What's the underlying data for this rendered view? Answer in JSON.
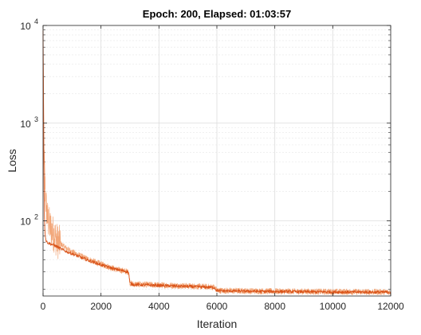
{
  "chart_data": {
    "type": "line",
    "title": "Epoch: 200, Elapsed: 01:03:57",
    "xlabel": "Iteration",
    "ylabel": "Loss",
    "xlim": [
      0,
      12000
    ],
    "ylim": [
      17,
      10000
    ],
    "yscale": "log",
    "grid": true,
    "minor_grid": true,
    "x_ticks": [
      0,
      2000,
      4000,
      6000,
      8000,
      10000,
      12000
    ],
    "x_tick_labels": [
      "0",
      "2000",
      "4000",
      "6000",
      "8000",
      "10000",
      "12000"
    ],
    "y_ticks": [
      {
        "value": 100,
        "base": "10",
        "exp": "2"
      },
      {
        "value": 1000,
        "base": "10",
        "exp": "3"
      },
      {
        "value": 10000,
        "base": "10",
        "exp": "4"
      }
    ],
    "series": [
      {
        "role": "raw",
        "color": "#f2a678",
        "x": [
          0,
          10,
          20,
          30,
          40,
          60,
          80,
          100,
          130,
          160,
          200,
          260,
          320,
          400,
          500,
          700,
          1000,
          1500,
          2000,
          2500,
          2950,
          3000,
          3100,
          4000,
          5000,
          5900,
          6000,
          6100,
          8000,
          10000,
          12000
        ],
        "y": [
          9000,
          3500,
          1500,
          700,
          400,
          260,
          200,
          150,
          120,
          105,
          95,
          85,
          78,
          70,
          62,
          55,
          48,
          41,
          36,
          32,
          30,
          23,
          22.5,
          22,
          21.5,
          21,
          19.5,
          19.3,
          19,
          18.8,
          18.7
        ]
      },
      {
        "role": "smoothed",
        "color": "#d95319",
        "x": [
          0,
          10,
          20,
          30,
          40,
          60,
          80,
          100,
          130,
          160,
          200,
          260,
          320,
          400,
          500,
          700,
          1000,
          1500,
          2000,
          2500,
          2950,
          3000,
          3100,
          4000,
          5000,
          5900,
          6000,
          6100,
          8000,
          10000,
          12000
        ],
        "y": [
          9000,
          3000,
          900,
          300,
          140,
          85,
          70,
          63,
          61,
          60,
          59,
          58,
          57,
          56,
          54,
          50,
          46,
          40,
          35.5,
          32,
          30,
          23,
          22.3,
          21.8,
          21.3,
          20.8,
          19.4,
          19.2,
          18.9,
          18.7,
          18.6
        ]
      }
    ]
  }
}
